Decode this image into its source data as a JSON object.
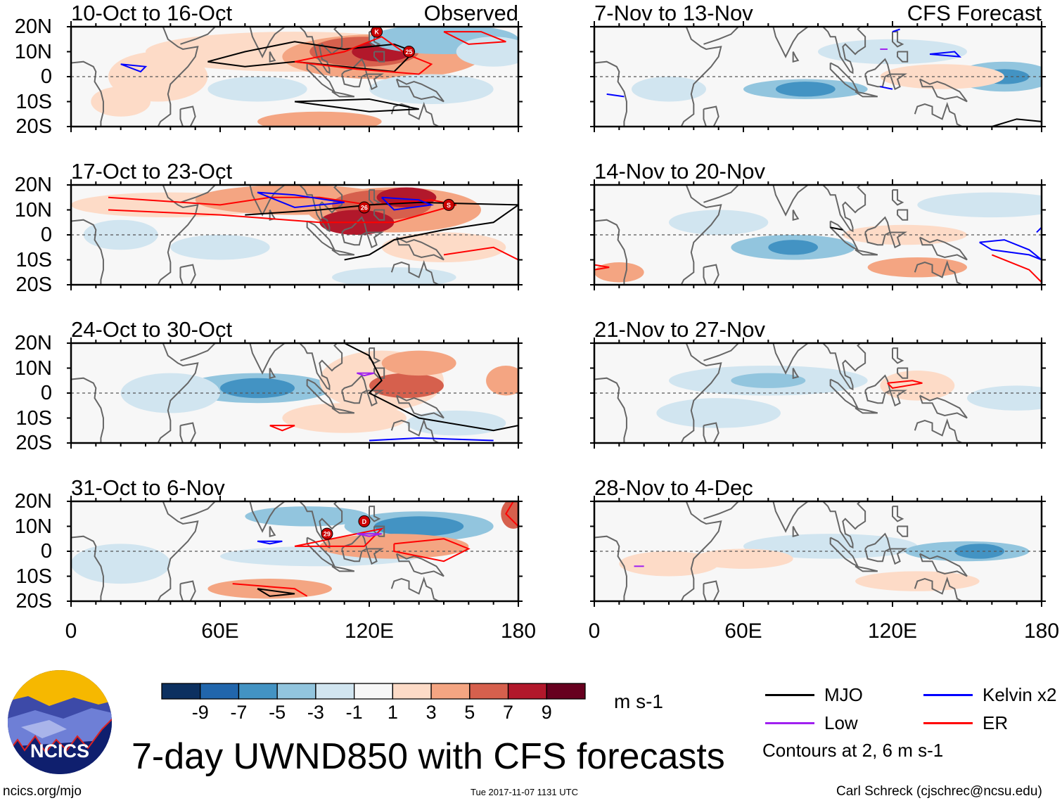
{
  "panels": [
    {
      "title": "10-Oct to 16-Oct",
      "tag": "Observed",
      "cyclones": [
        "K",
        "25"
      ]
    },
    {
      "title": "17-Oct to 23-Oct",
      "cyclones": [
        "26",
        "S"
      ]
    },
    {
      "title": "24-Oct to 30-Oct",
      "cyclones": []
    },
    {
      "title": "31-Oct to 6-Nov",
      "cyclones": [
        "29",
        "D"
      ]
    },
    {
      "title": "7-Nov to 13-Nov",
      "tag": "CFS Forecast",
      "cyclones": []
    },
    {
      "title": "14-Nov to 20-Nov",
      "cyclones": []
    },
    {
      "title": "21-Nov to 27-Nov",
      "cyclones": []
    },
    {
      "title": "28-Nov to 4-Dec",
      "cyclones": []
    }
  ],
  "lat_labels": [
    "20N",
    "10N",
    "0",
    "10S",
    "20S"
  ],
  "lon_labels": [
    "0",
    "60E",
    "120E",
    "180"
  ],
  "colorbar": {
    "labels": [
      "-9",
      "-7",
      "-5",
      "-3",
      "-1",
      "1",
      "3",
      "5",
      "7",
      "9"
    ],
    "colors": [
      "#0c3060",
      "#2166ac",
      "#4393c3",
      "#92c5de",
      "#d1e5f0",
      "#f7f7f7",
      "#fddbc7",
      "#f4a582",
      "#d6604d",
      "#b2182b",
      "#67001f"
    ],
    "unit": "m s-1"
  },
  "legend": {
    "items": [
      {
        "label": "MJO",
        "color": "#000000"
      },
      {
        "label": "Kelvin x2",
        "color": "#0000ff"
      },
      {
        "label": "Low",
        "color": "#a020f0"
      },
      {
        "label": "ER",
        "color": "#ff0000"
      }
    ],
    "note": "Contours at 2, 6 m s-1"
  },
  "logo": {
    "text": "NCICS"
  },
  "title": "7-day UWND850 with CFS forecasts",
  "footer": {
    "url": "ncics.org/mjo",
    "timestamp": "Tue 2017-11-07 1131 UTC",
    "credit": "Carl Schreck (cjschrec@ncsu.edu)"
  }
}
